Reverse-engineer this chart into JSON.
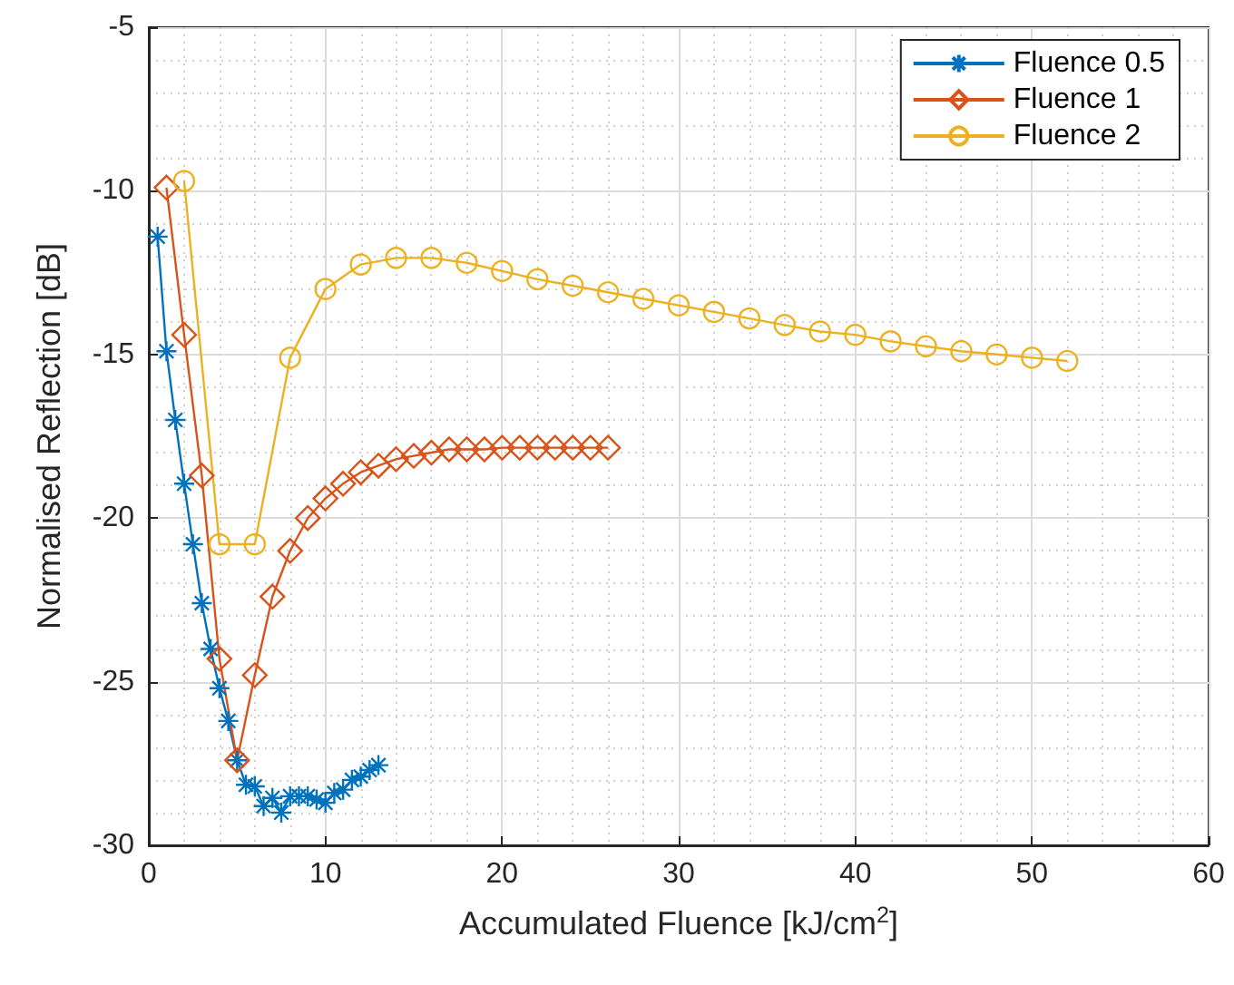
{
  "chart_data": {
    "type": "line",
    "xlabel": "Accumulated Fluence [kJ/cm$^{2}$]",
    "ylabel": "Normalised Reflection [dB]",
    "xlim": [
      0,
      60
    ],
    "xticks": [
      0,
      10,
      20,
      30,
      40,
      50,
      60
    ],
    "ylim": [
      -30,
      -5
    ],
    "yticks": [
      -30,
      -25,
      -20,
      -15,
      -10,
      -5
    ],
    "grid": true,
    "legend": "top right",
    "line_style": "solid",
    "series": [
      {
        "name": "Fluence 0.5",
        "color": "#0072bd",
        "marker": "cross",
        "x": [
          0.5,
          1,
          1.5,
          2,
          2.5,
          3,
          3.5,
          4,
          4.5,
          5,
          5.5,
          6,
          6.5,
          7,
          7.5,
          8,
          8.5,
          9,
          9.5,
          10,
          10.5,
          11,
          11.5,
          12,
          12.5,
          13
        ],
        "values": [
          -11.4,
          -14.9,
          -17.0,
          -18.95,
          -20.8,
          -22.6,
          -24.0,
          -25.2,
          -26.2,
          -27.4,
          -28.15,
          -28.2,
          -28.8,
          -28.55,
          -29.0,
          -28.5,
          -28.5,
          -28.5,
          -28.6,
          -28.7,
          -28.4,
          -28.3,
          -28.0,
          -27.9,
          -27.7,
          -27.55
        ]
      },
      {
        "name": "Fluence 1",
        "color": "#d95319",
        "marker": "diamond",
        "x": [
          1,
          2,
          3,
          4,
          5,
          6,
          7,
          8,
          9,
          10,
          11,
          12,
          13,
          14,
          15,
          16,
          17,
          18,
          19,
          20,
          21,
          22,
          23,
          24,
          25,
          26
        ],
        "values": [
          -9.9,
          -14.4,
          -18.7,
          -24.3,
          -27.4,
          -24.8,
          -22.4,
          -21.0,
          -20.0,
          -19.4,
          -18.95,
          -18.6,
          -18.4,
          -18.2,
          -18.1,
          -18.0,
          -17.9,
          -17.9,
          -17.9,
          -17.85,
          -17.85,
          -17.85,
          -17.85,
          -17.85,
          -17.85,
          -17.85
        ]
      },
      {
        "name": "Fluence 2",
        "color": "#edb120",
        "marker": "circle",
        "x": [
          2,
          4,
          6,
          8,
          10,
          12,
          14,
          16,
          18,
          20,
          22,
          24,
          26,
          28,
          30,
          32,
          34,
          36,
          38,
          40,
          42,
          44,
          46,
          48,
          50,
          52
        ],
        "values": [
          -9.7,
          -20.8,
          -20.8,
          -15.1,
          -13.0,
          -12.25,
          -12.05,
          -12.05,
          -12.2,
          -12.45,
          -12.7,
          -12.9,
          -13.1,
          -13.3,
          -13.5,
          -13.7,
          -13.9,
          -14.1,
          -14.3,
          -14.4,
          -14.6,
          -14.75,
          -14.9,
          -15.0,
          -15.1,
          -15.2
        ]
      }
    ]
  }
}
